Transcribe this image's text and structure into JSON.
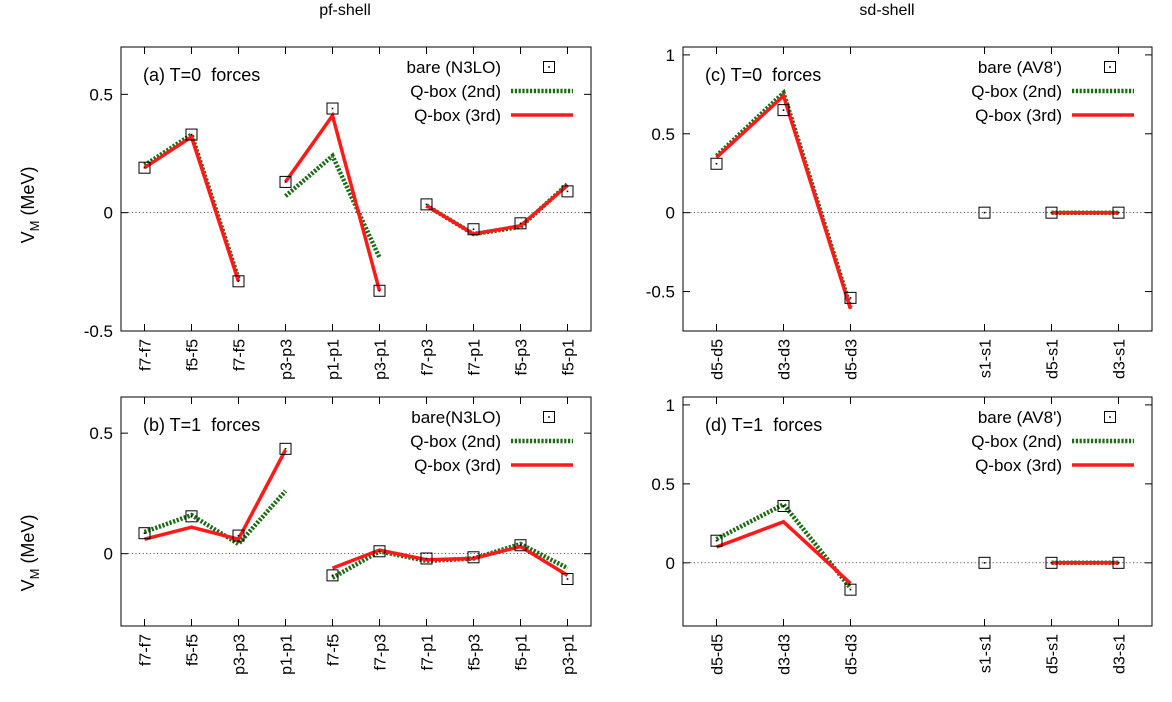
{
  "figure": {
    "left_title": "pf-shell",
    "right_title": "sd-shell",
    "ylabel": "V",
    "ylabel_sub": "M",
    "ylabel_unit": " (MeV)"
  },
  "chart_data": [
    {
      "type": "line",
      "panel": "pf-shell upper",
      "title": "(a) T=0  forces",
      "xlabel": "",
      "ylabel": "V_M (MeV)",
      "ylim": [
        -0.5,
        0.7
      ],
      "yticks": [
        -0.5,
        0,
        0.5
      ],
      "ytick_labels": [
        "-0.5",
        "0",
        "0.5"
      ],
      "categories": [
        "f7-f7",
        "f5-f5",
        "f7-f5",
        "p3-p3",
        "p1-p1",
        "p3-p1",
        "f7-p3",
        "f7-p1",
        "f5-p3",
        "f5-p1"
      ],
      "groups": [
        [
          0,
          2
        ],
        [
          3,
          5
        ],
        [
          6,
          9
        ]
      ],
      "legend": {
        "position": "top-right",
        "entries": [
          {
            "label": "bare (N3LO)",
            "style": "marker"
          },
          {
            "label": "Q-box (2nd)",
            "style": "dotted"
          },
          {
            "label": "Q-box (3rd)",
            "style": "solid"
          }
        ]
      },
      "series": [
        {
          "name": "bare (N3LO)",
          "style": "marker",
          "color": "#000000",
          "values": [
            0.19,
            0.33,
            -0.29,
            0.13,
            0.44,
            -0.33,
            0.035,
            -0.07,
            -0.045,
            0.09
          ]
        },
        {
          "name": "Q-box (2nd)",
          "style": "dotted",
          "color": "#1a6b12",
          "values": [
            0.2,
            0.33,
            -0.28,
            0.07,
            0.24,
            -0.19,
            0.03,
            -0.09,
            -0.06,
            0.12
          ]
        },
        {
          "name": "Q-box (3rd)",
          "style": "solid",
          "color": "#ff1a1a",
          "values": [
            0.19,
            0.32,
            -0.29,
            0.13,
            0.41,
            -0.33,
            0.03,
            -0.09,
            -0.055,
            0.115
          ]
        }
      ]
    },
    {
      "type": "line",
      "panel": "sd-shell upper",
      "title": "(c) T=0  forces",
      "xlabel": "",
      "ylabel": "",
      "ylim": [
        -0.75,
        1.05
      ],
      "yticks": [
        -0.5,
        0,
        0.5,
        1
      ],
      "ytick_labels": [
        "-0.5",
        "0",
        "0.5",
        "1"
      ],
      "categories": [
        "d5-d5",
        "d3-d3",
        "d5-d3",
        "s1-s1",
        "d5-s1",
        "d3-s1"
      ],
      "x_positions": [
        0,
        1,
        2,
        4,
        5,
        6
      ],
      "groups": [
        [
          0,
          2
        ],
        [
          4,
          5
        ]
      ],
      "legend": {
        "position": "top-right",
        "entries": [
          {
            "label": "bare (AV8')",
            "style": "marker"
          },
          {
            "label": "Q-box (2nd)",
            "style": "dotted"
          },
          {
            "label": "Q-box (3rd)",
            "style": "solid"
          }
        ]
      },
      "series": [
        {
          "name": "bare (AV8')",
          "style": "marker",
          "color": "#000000",
          "values": [
            0.31,
            0.65,
            -0.54,
            0.0,
            0.0,
            0.0
          ]
        },
        {
          "name": "Q-box (2nd)",
          "style": "dotted",
          "color": "#1a6b12",
          "values": [
            0.36,
            0.76,
            -0.6,
            0.0,
            0.0,
            0.0
          ]
        },
        {
          "name": "Q-box (3rd)",
          "style": "solid",
          "color": "#ff1a1a",
          "values": [
            0.35,
            0.74,
            -0.61,
            0.0,
            0.0,
            0.0
          ]
        }
      ]
    },
    {
      "type": "line",
      "panel": "pf-shell lower",
      "title": "(b) T=1  forces",
      "xlabel": "",
      "ylabel": "V_M (MeV)",
      "ylim": [
        -0.3,
        0.65
      ],
      "yticks": [
        0,
        0.5
      ],
      "ytick_labels": [
        "0",
        "0.5"
      ],
      "categories": [
        "f7-f7",
        "f5-f5",
        "p3-p3",
        "p1-p1",
        "f7-f5",
        "f7-p3",
        "f7-p1",
        "f5-p3",
        "f5-p1",
        "p3-p1"
      ],
      "groups": [
        [
          0,
          3
        ],
        [
          4,
          9
        ]
      ],
      "legend": {
        "position": "top-right",
        "entries": [
          {
            "label": "bare(N3LO)",
            "style": "marker"
          },
          {
            "label": "Q-box (2nd)",
            "style": "dotted"
          },
          {
            "label": "Q-box (3rd)",
            "style": "solid"
          }
        ]
      },
      "series": [
        {
          "name": "bare(N3LO)",
          "style": "marker",
          "color": "#000000",
          "values": [
            0.085,
            0.155,
            0.075,
            0.435,
            -0.09,
            0.01,
            -0.02,
            -0.015,
            0.035,
            -0.105
          ]
        },
        {
          "name": "Q-box (2nd)",
          "style": "dotted",
          "color": "#1a6b12",
          "values": [
            0.09,
            0.16,
            0.04,
            0.26,
            -0.1,
            0.01,
            -0.03,
            -0.02,
            0.04,
            -0.06
          ]
        },
        {
          "name": "Q-box (3rd)",
          "style": "solid",
          "color": "#ff1a1a",
          "values": [
            0.06,
            0.11,
            0.06,
            0.43,
            -0.06,
            0.015,
            -0.025,
            -0.02,
            0.03,
            -0.09
          ]
        }
      ]
    },
    {
      "type": "line",
      "panel": "sd-shell lower",
      "title": "(d) T=1  forces",
      "xlabel": "",
      "ylabel": "",
      "ylim": [
        -0.4,
        1.05
      ],
      "yticks": [
        0,
        0.5,
        1
      ],
      "ytick_labels": [
        "0",
        "0.5",
        "1"
      ],
      "categories": [
        "d5-d5",
        "d3-d3",
        "d5-d3",
        "s1-s1",
        "d5-s1",
        "d3-s1"
      ],
      "x_positions": [
        0,
        1,
        2,
        4,
        5,
        6
      ],
      "groups": [
        [
          0,
          2
        ],
        [
          4,
          5
        ]
      ],
      "legend": {
        "position": "top-right",
        "entries": [
          {
            "label": "bare (AV8')",
            "style": "marker"
          },
          {
            "label": "Q-box (2nd)",
            "style": "dotted"
          },
          {
            "label": "Q-box (3rd)",
            "style": "solid"
          }
        ]
      },
      "series": [
        {
          "name": "bare (AV8')",
          "style": "marker",
          "color": "#000000",
          "values": [
            0.14,
            0.36,
            -0.17,
            0.0,
            0.0,
            0.0
          ]
        },
        {
          "name": "Q-box (2nd)",
          "style": "dotted",
          "color": "#1a6b12",
          "values": [
            0.15,
            0.37,
            -0.16,
            0.0,
            0.0,
            0.0
          ]
        },
        {
          "name": "Q-box (3rd)",
          "style": "solid",
          "color": "#ff1a1a",
          "values": [
            0.1,
            0.26,
            -0.13,
            0.0,
            0.0,
            0.0
          ]
        }
      ]
    }
  ]
}
